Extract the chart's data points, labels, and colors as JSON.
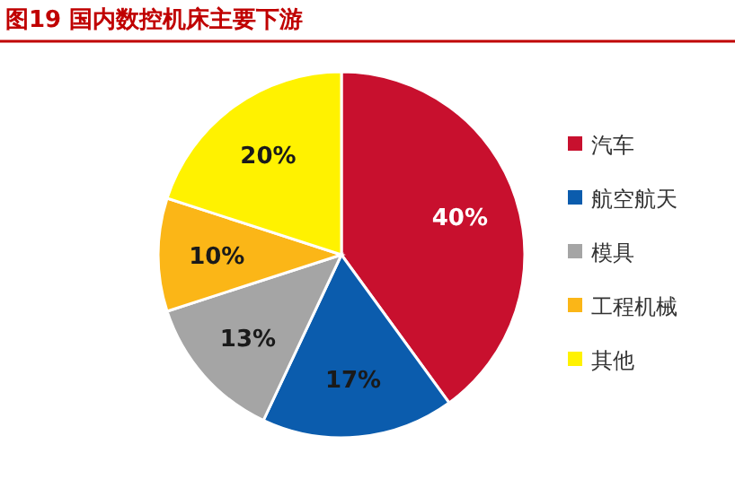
{
  "chart_data": {
    "type": "pie",
    "title": "图19  国内数控机床主要下游",
    "categories": [
      "汽车",
      "航空航天",
      "模具",
      "工程机械",
      "其他"
    ],
    "values": [
      40,
      17,
      13,
      10,
      20
    ],
    "colors": [
      "#c8102e",
      "#0b5cad",
      "#a5a5a5",
      "#fbb617",
      "#fff200"
    ],
    "value_labels": [
      "40%",
      "17%",
      "13%",
      "10%",
      "20%"
    ],
    "legend": "right"
  }
}
